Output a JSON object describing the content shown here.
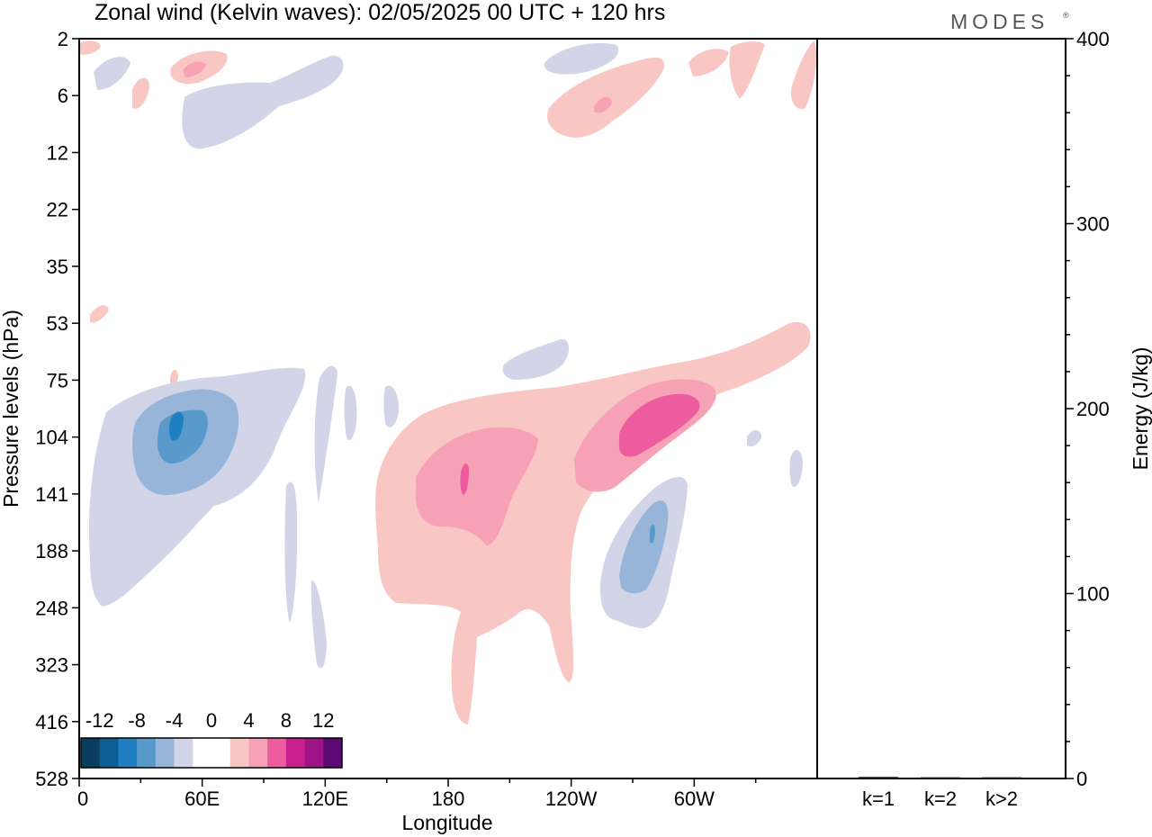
{
  "title": "Zonal wind (Kelvin waves):  02/05/2025  00 UTC  + 120 hrs",
  "logo": {
    "text": "MODES",
    "mark": "®"
  },
  "chart_data": [
    {
      "type": "heatmap",
      "title": "Zonal wind (Kelvin waves):  02/05/2025  00 UTC  + 120 hrs",
      "xlabel": "Longitude",
      "ylabel": "Pressure levels (hPa)",
      "x_tick_labels": [
        "0",
        "60E",
        "120E",
        "180",
        "120W",
        "60W"
      ],
      "xlim_deg": [
        0,
        360
      ],
      "x_ticks_deg": [
        0,
        60,
        120,
        180,
        240,
        300
      ],
      "y_levels_hPa": [
        2,
        6,
        12,
        22,
        35,
        53,
        75,
        104,
        141,
        188,
        248,
        323,
        416,
        528
      ],
      "y_scale": "log (pressure), increasing downward",
      "colorbar": {
        "tick_labels": [
          "-12",
          "-8",
          "-4",
          "0",
          "4",
          "8",
          "12"
        ],
        "colors": [
          "#0b3d5e",
          "#0d5e94",
          "#1f7fc0",
          "#5a9acb",
          "#97b5d8",
          "#d2d4e8",
          "#ffffff",
          "#ffffff",
          "#f8c7c4",
          "#f6a1b6",
          "#ec5c9f",
          "#cc1f8f",
          "#9e1486",
          "#5c0a73"
        ]
      },
      "features": [
        {
          "name": "negative anomaly, W. Indian Ocean",
          "peak_value": -10,
          "center_lon": 48,
          "center_hPa": 104
        },
        {
          "name": "positive anomaly, central Pacific",
          "peak_value": 8,
          "center_lon": 185,
          "center_hPa": 130
        },
        {
          "name": "positive anomaly, E. Pacific",
          "peak_value": 8,
          "center_lon": 280,
          "center_hPa": 95
        },
        {
          "name": "negative anomaly, Americas",
          "peak_value": -6,
          "center_lon": 287,
          "center_hPa": 185
        }
      ]
    },
    {
      "type": "bar",
      "categories": [
        "k=1",
        "k=2",
        "k>2"
      ],
      "values": [
        0.4,
        0.2,
        0.2
      ],
      "ylabel": "Energy (J/kg)",
      "ylim": [
        0,
        400
      ],
      "y_tick_labels": [
        "0",
        "100",
        "200",
        "300",
        "400"
      ]
    }
  ]
}
